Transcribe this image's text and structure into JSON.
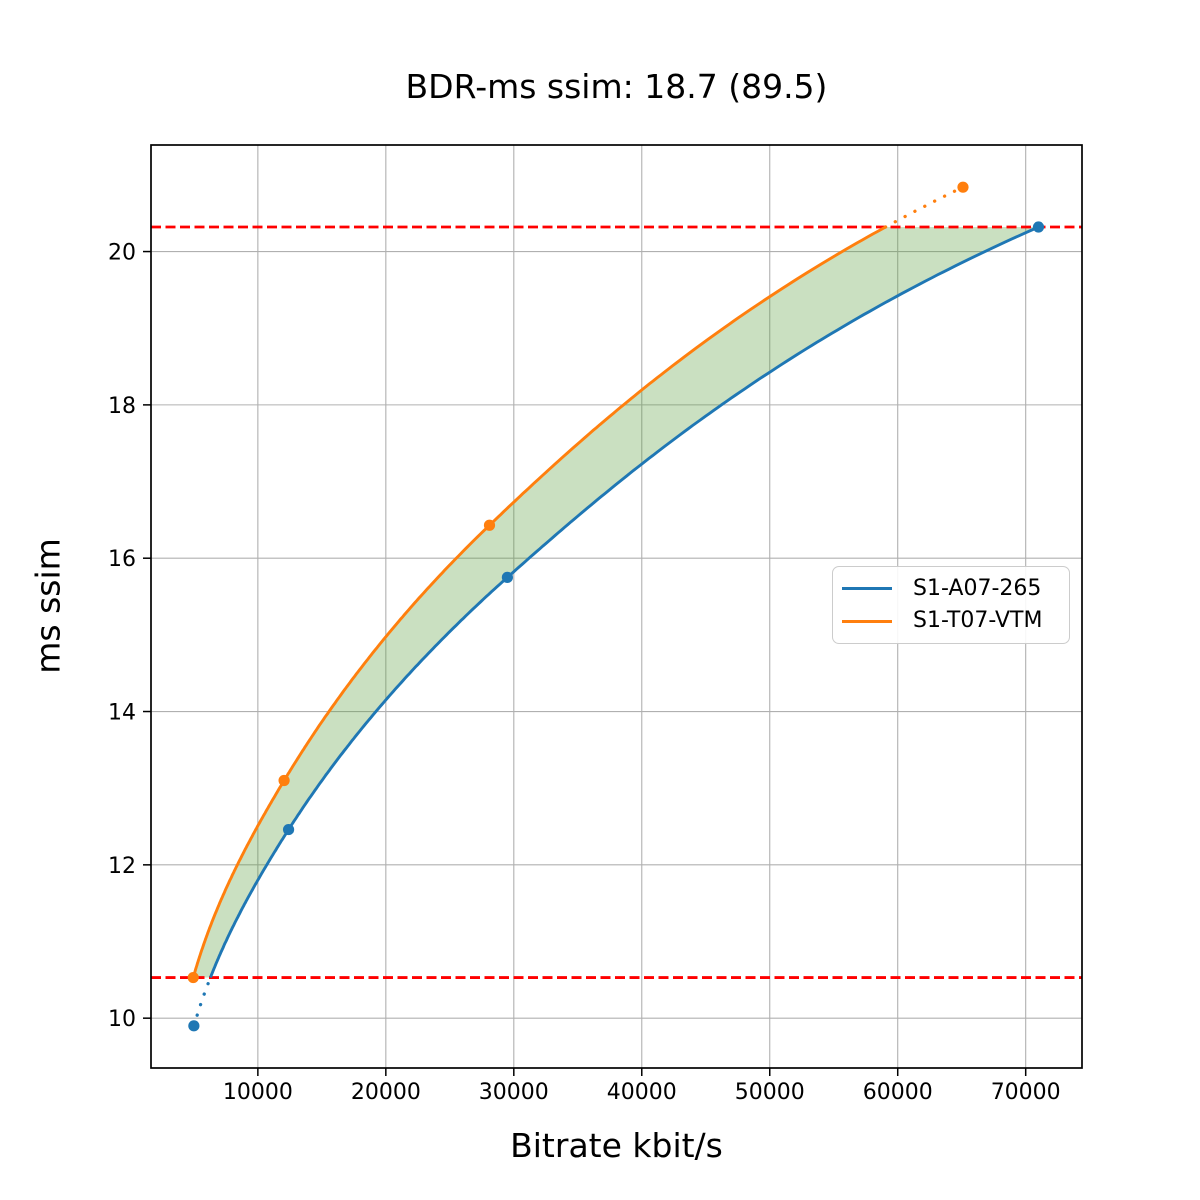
{
  "chart_data": {
    "type": "line",
    "title": "BDR-ms ssim: 18.7 (89.5)",
    "xlabel": "Bitrate kbit/s",
    "ylabel": "ms ssim",
    "xlim": [
      1650,
      74400
    ],
    "ylim": [
      9.35,
      21.39
    ],
    "x_ticks": [
      10000,
      20000,
      30000,
      40000,
      50000,
      60000,
      70000
    ],
    "x_tick_labels": [
      "10000",
      "20000",
      "30000",
      "40000",
      "50000",
      "60000",
      "70000"
    ],
    "y_ticks": [
      10,
      12,
      14,
      16,
      18,
      20
    ],
    "y_tick_labels": [
      "10",
      "12",
      "14",
      "16",
      "18",
      "20"
    ],
    "grid": true,
    "grid_color": "#b0b0b0",
    "interpolation": "pchip-logx",
    "legend_position": "center-right",
    "series": [
      {
        "name": "S1-A07-265",
        "color": "#1f77b4",
        "x": [
          5000,
          12400,
          29500,
          71000
        ],
        "y": [
          9.9,
          12.46,
          15.75,
          20.32
        ]
      },
      {
        "name": "S1-T07-VTM",
        "color": "#ff7f0e",
        "x": [
          4950,
          12050,
          28100,
          65100
        ],
        "y": [
          10.53,
          13.1,
          16.43,
          20.84
        ]
      }
    ],
    "ref_lines": {
      "y_values": [
        10.53,
        20.32
      ],
      "color": "#ff0000",
      "style": "dashed"
    },
    "fill_between": {
      "color": "#5a9e3f",
      "opacity": 0.32,
      "region": "between both curves, clipped to y range of ref lines"
    }
  }
}
